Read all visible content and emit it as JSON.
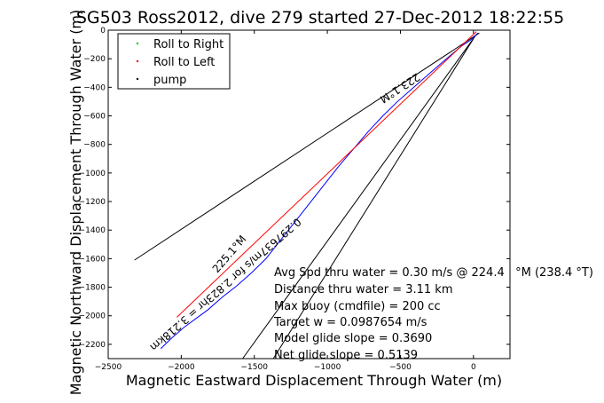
{
  "chart_data": {
    "type": "line",
    "title": "SG503 Ross2012, dive 279 started 27-Dec-2012 18:22:55",
    "xlabel": "Magnetic Eastward Displacement Through Water (m)",
    "ylabel": "Magnetic Northward Displacement Through Water (m)",
    "xlim": [
      -2500,
      250
    ],
    "ylim": [
      -2300,
      0
    ],
    "xticks": [
      -2500,
      -2000,
      -1500,
      -1000,
      -500,
      0
    ],
    "yticks": [
      0,
      -200,
      -400,
      -600,
      -800,
      -1000,
      -1200,
      -1400,
      -1600,
      -1800,
      -2000,
      -2200
    ],
    "grid": false,
    "legend": {
      "position": "top-left",
      "entries": [
        {
          "label": "Roll to Right",
          "color": "#00cc00",
          "marker": "dot"
        },
        {
          "label": "Roll to Left",
          "color": "#ff0000",
          "marker": "dot"
        },
        {
          "label": "pump",
          "color": "#000000",
          "marker": "dot"
        }
      ]
    },
    "series": [
      {
        "color": "#0000ff",
        "x": [
          30,
          10,
          -20,
          -80,
          -150,
          -230,
          -320,
          -420,
          -520,
          -620,
          -720,
          -820,
          -920,
          -1020,
          -1120,
          -1220,
          -1320,
          -1420,
          -1520,
          -1620,
          -1720,
          -1820,
          -1900,
          -1980,
          -2070,
          -2140
        ],
        "y": [
          -20,
          -40,
          -70,
          -110,
          -170,
          -240,
          -320,
          -410,
          -500,
          -600,
          -710,
          -830,
          -950,
          -1080,
          -1210,
          -1340,
          -1470,
          -1600,
          -1700,
          -1790,
          -1870,
          -1960,
          -2020,
          -2080,
          -2160,
          -2230
        ]
      },
      {
        "color": "#ff0000",
        "x": [
          20,
          -2030
        ],
        "y": [
          -10,
          -2010
        ]
      }
    ],
    "reference_lines": [
      {
        "color": "#000000",
        "x": [
          40,
          -2320
        ],
        "y": [
          -20,
          -1610
        ]
      },
      {
        "color": "#000000",
        "x": [
          20,
          -1580
        ],
        "y": [
          -30,
          -2300
        ]
      },
      {
        "color": "#000000",
        "x": [
          0,
          -1370
        ],
        "y": [
          -60,
          -2300
        ]
      }
    ],
    "line_labels": [
      {
        "text": "225.1°M"
      },
      {
        "text": "223.1°M"
      },
      {
        "text": "0.297637m/s for 2.823hr = 3.218km"
      }
    ],
    "annotations": [
      "Avg Spd thru water = 0.30 m/s @ 224.4   °M (238.4 °T)",
      "Distance thru water = 3.11 km",
      "Max buoy (cmdfile) = 200 cc",
      "Target w = 0.0987654 m/s",
      "Model glide slope = 0.3690",
      "Net glide slope = 0.5139"
    ]
  }
}
